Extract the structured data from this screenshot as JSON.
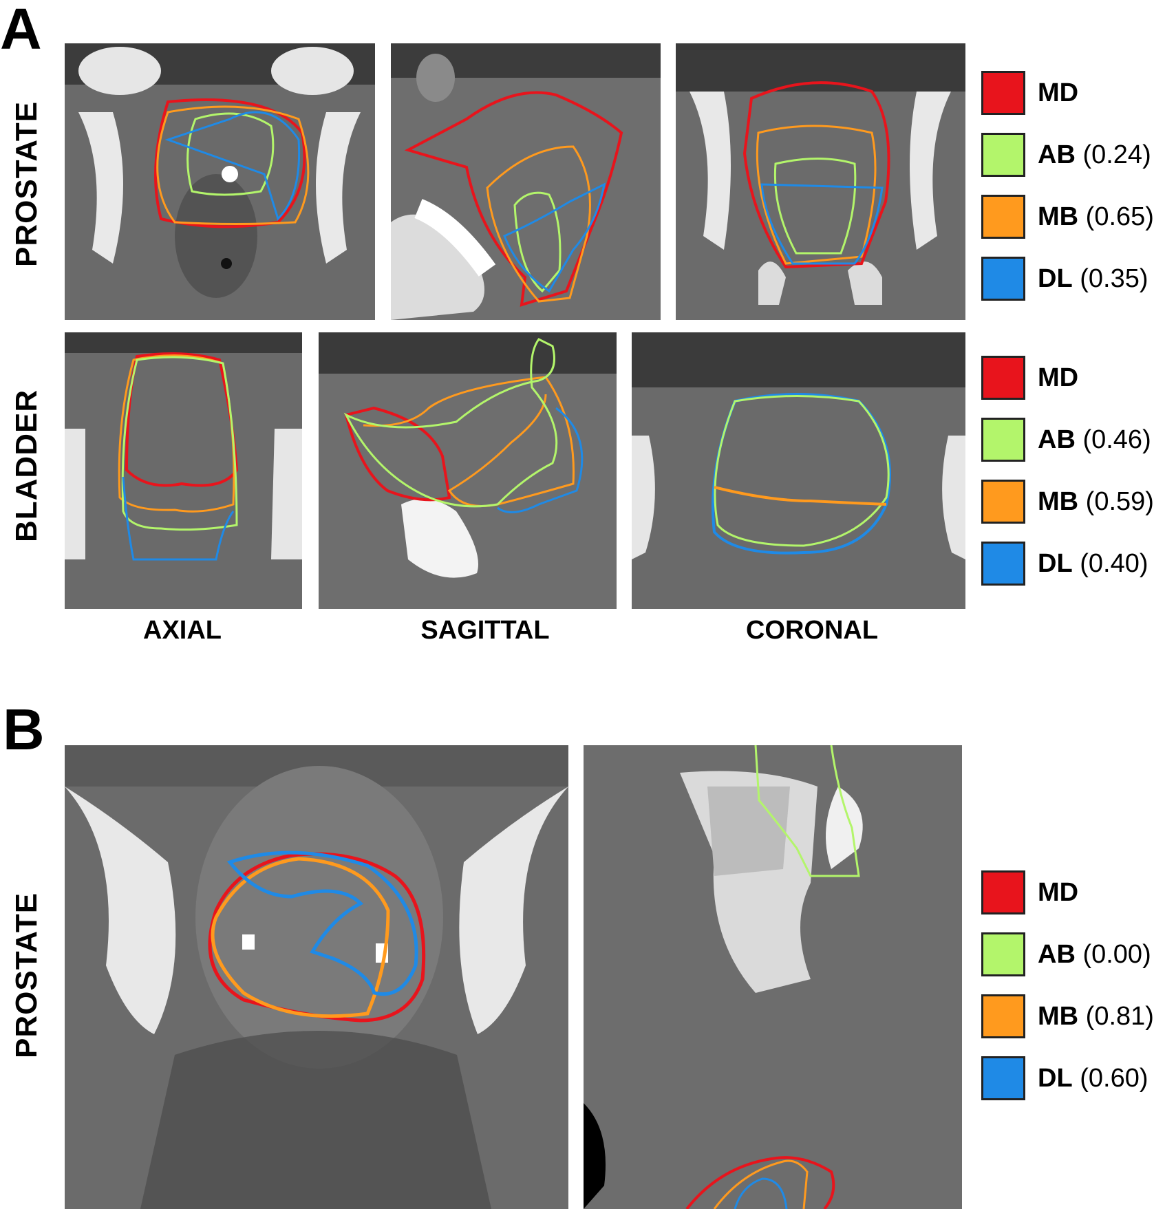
{
  "panel_a": {
    "letter": "A",
    "rows": [
      {
        "label": "PROSTATE",
        "legend": [
          {
            "abbr": "MD",
            "score": "",
            "color": "#e8141c"
          },
          {
            "abbr": "AB",
            "score": "(0.24)",
            "color": "#b3f56b"
          },
          {
            "abbr": "MB",
            "score": "(0.65)",
            "color": "#ff9a1e"
          },
          {
            "abbr": "DL",
            "score": "(0.35)",
            "color": "#1f8ae6"
          }
        ]
      },
      {
        "label": "BLADDER",
        "legend": [
          {
            "abbr": "MD",
            "score": "",
            "color": "#e8141c"
          },
          {
            "abbr": "AB",
            "score": "(0.46)",
            "color": "#b3f56b"
          },
          {
            "abbr": "MB",
            "score": "(0.59)",
            "color": "#ff9a1e"
          },
          {
            "abbr": "DL",
            "score": "(0.40)",
            "color": "#1f8ae6"
          }
        ]
      }
    ],
    "views": [
      "AXIAL",
      "SAGITTAL",
      "CORONAL"
    ]
  },
  "panel_b": {
    "letter": "B",
    "row_label": "PROSTATE",
    "legend": [
      {
        "abbr": "MD",
        "score": "",
        "color": "#e8141c"
      },
      {
        "abbr": "AB",
        "score": "(0.00)",
        "color": "#b3f56b"
      },
      {
        "abbr": "MB",
        "score": "(0.81)",
        "color": "#ff9a1e"
      },
      {
        "abbr": "DL",
        "score": "(0.60)",
        "color": "#1f8ae6"
      }
    ]
  },
  "colors": {
    "md": "#e8141c",
    "ab": "#b3f56b",
    "mb": "#ff9a1e",
    "dl": "#1f8ae6"
  }
}
